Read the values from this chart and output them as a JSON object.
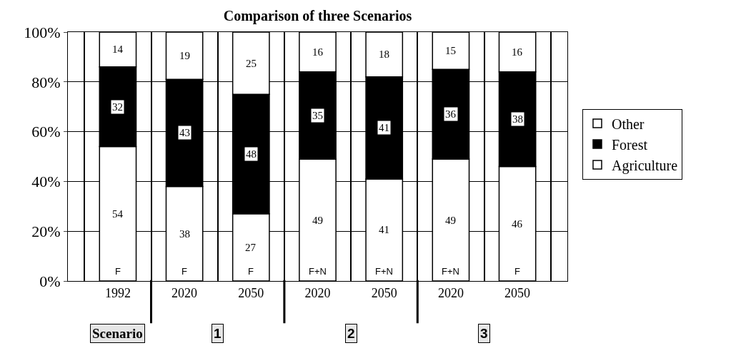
{
  "chart_data": {
    "type": "bar",
    "title": "Comparison of three Scenarios",
    "stacked": true,
    "categories": [
      "1992",
      "2020",
      "2050",
      "2020",
      "2050",
      "2020",
      "2050"
    ],
    "series": [
      {
        "name": "Agriculture",
        "color": "#ffffff",
        "values": [
          54,
          38,
          27,
          49,
          41,
          49,
          46
        ]
      },
      {
        "name": "Forest",
        "color": "#000000",
        "values": [
          32,
          43,
          48,
          35,
          41,
          36,
          38
        ]
      },
      {
        "name": "Other",
        "color": "#ffffff",
        "values": [
          14,
          19,
          25,
          16,
          18,
          15,
          16
        ]
      }
    ],
    "ylim": [
      0,
      100
    ],
    "yticks": [
      {
        "value": 0,
        "label": "0%"
      },
      {
        "value": 20,
        "label": "20%"
      },
      {
        "value": 40,
        "label": "40%"
      },
      {
        "value": 60,
        "label": "60%"
      },
      {
        "value": 80,
        "label": "80%"
      },
      {
        "value": 100,
        "label": "100%"
      }
    ],
    "data_labels": true,
    "grid": true,
    "legend": "right",
    "annotations": [
      "F",
      "F",
      "F",
      "F+N",
      "F+N",
      "F+N",
      "F",
      "Scenario",
      "1",
      "2",
      "3"
    ]
  }
}
